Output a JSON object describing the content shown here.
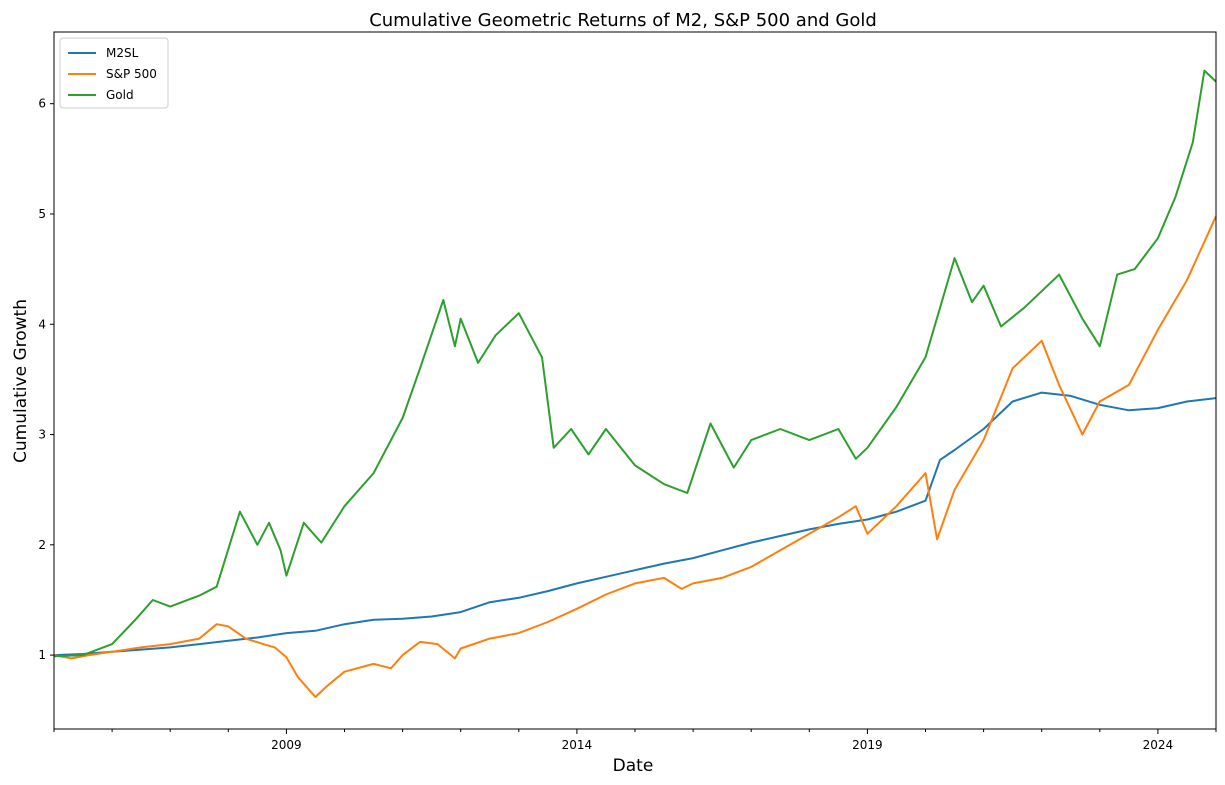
{
  "chart_data": {
    "type": "line",
    "title": "Cumulative Geometric Returns of M2, S&P 500 and Gold",
    "xlabel": "Date",
    "ylabel": "Cumulative Growth",
    "xlim": [
      2005.0,
      2025.0
    ],
    "ylim": [
      0.33,
      6.65
    ],
    "x_ticks": [
      {
        "value": 2009,
        "label": "2009"
      },
      {
        "value": 2014,
        "label": "2014"
      },
      {
        "value": 2019,
        "label": "2019"
      },
      {
        "value": 2024,
        "label": "2024"
      }
    ],
    "y_ticks": [
      {
        "value": 1,
        "label": "1"
      },
      {
        "value": 2,
        "label": "2"
      },
      {
        "value": 3,
        "label": "3"
      },
      {
        "value": 4,
        "label": "4"
      },
      {
        "value": 5,
        "label": "5"
      },
      {
        "value": 6,
        "label": "6"
      }
    ],
    "legend_position": "top-left",
    "grid": false,
    "series": [
      {
        "name": "M2SL",
        "color": "#1f77b4",
        "points": [
          [
            2005.0,
            1.0
          ],
          [
            2005.5,
            1.01
          ],
          [
            2006.0,
            1.03
          ],
          [
            2006.5,
            1.05
          ],
          [
            2007.0,
            1.07
          ],
          [
            2007.5,
            1.1
          ],
          [
            2008.0,
            1.13
          ],
          [
            2008.5,
            1.16
          ],
          [
            2009.0,
            1.2
          ],
          [
            2009.5,
            1.22
          ],
          [
            2010.0,
            1.28
          ],
          [
            2010.5,
            1.32
          ],
          [
            2011.0,
            1.33
          ],
          [
            2011.5,
            1.35
          ],
          [
            2012.0,
            1.39
          ],
          [
            2012.5,
            1.48
          ],
          [
            2013.0,
            1.52
          ],
          [
            2013.5,
            1.58
          ],
          [
            2014.0,
            1.65
          ],
          [
            2014.5,
            1.71
          ],
          [
            2015.0,
            1.77
          ],
          [
            2015.5,
            1.83
          ],
          [
            2016.0,
            1.88
          ],
          [
            2016.5,
            1.95
          ],
          [
            2017.0,
            2.02
          ],
          [
            2017.5,
            2.08
          ],
          [
            2018.0,
            2.14
          ],
          [
            2018.5,
            2.19
          ],
          [
            2019.0,
            2.23
          ],
          [
            2019.5,
            2.3
          ],
          [
            2020.0,
            2.4
          ],
          [
            2020.25,
            2.77
          ],
          [
            2020.5,
            2.86
          ],
          [
            2021.0,
            3.05
          ],
          [
            2021.5,
            3.3
          ],
          [
            2022.0,
            3.38
          ],
          [
            2022.5,
            3.35
          ],
          [
            2023.0,
            3.27
          ],
          [
            2023.5,
            3.22
          ],
          [
            2024.0,
            3.24
          ],
          [
            2024.5,
            3.3
          ],
          [
            2025.0,
            3.33
          ]
        ]
      },
      {
        "name": "S&P 500",
        "color": "#ff7f0e",
        "points": [
          [
            2005.0,
            1.0
          ],
          [
            2005.3,
            0.97
          ],
          [
            2005.6,
            1.0
          ],
          [
            2006.0,
            1.03
          ],
          [
            2006.5,
            1.07
          ],
          [
            2007.0,
            1.1
          ],
          [
            2007.5,
            1.15
          ],
          [
            2007.8,
            1.28
          ],
          [
            2008.0,
            1.26
          ],
          [
            2008.3,
            1.15
          ],
          [
            2008.6,
            1.1
          ],
          [
            2008.8,
            1.07
          ],
          [
            2009.0,
            0.98
          ],
          [
            2009.2,
            0.8
          ],
          [
            2009.5,
            0.62
          ],
          [
            2009.7,
            0.72
          ],
          [
            2010.0,
            0.85
          ],
          [
            2010.5,
            0.92
          ],
          [
            2010.8,
            0.88
          ],
          [
            2011.0,
            1.0
          ],
          [
            2011.3,
            1.12
          ],
          [
            2011.6,
            1.1
          ],
          [
            2011.9,
            0.97
          ],
          [
            2012.0,
            1.06
          ],
          [
            2012.5,
            1.15
          ],
          [
            2013.0,
            1.2
          ],
          [
            2013.5,
            1.3
          ],
          [
            2014.0,
            1.42
          ],
          [
            2014.5,
            1.55
          ],
          [
            2015.0,
            1.65
          ],
          [
            2015.5,
            1.7
          ],
          [
            2015.8,
            1.6
          ],
          [
            2016.0,
            1.65
          ],
          [
            2016.5,
            1.7
          ],
          [
            2017.0,
            1.8
          ],
          [
            2017.5,
            1.95
          ],
          [
            2018.0,
            2.1
          ],
          [
            2018.5,
            2.25
          ],
          [
            2018.8,
            2.35
          ],
          [
            2019.0,
            2.1
          ],
          [
            2019.5,
            2.35
          ],
          [
            2020.0,
            2.65
          ],
          [
            2020.2,
            2.05
          ],
          [
            2020.5,
            2.5
          ],
          [
            2021.0,
            2.95
          ],
          [
            2021.5,
            3.6
          ],
          [
            2022.0,
            3.85
          ],
          [
            2022.3,
            3.45
          ],
          [
            2022.7,
            3.0
          ],
          [
            2023.0,
            3.3
          ],
          [
            2023.5,
            3.45
          ],
          [
            2024.0,
            3.95
          ],
          [
            2024.5,
            4.4
          ],
          [
            2025.0,
            4.98
          ]
        ]
      },
      {
        "name": "Gold",
        "color": "#2ca02c",
        "points": [
          [
            2005.0,
            0.99
          ],
          [
            2005.5,
            1.0
          ],
          [
            2006.0,
            1.1
          ],
          [
            2006.4,
            1.32
          ],
          [
            2006.7,
            1.5
          ],
          [
            2007.0,
            1.44
          ],
          [
            2007.5,
            1.54
          ],
          [
            2007.8,
            1.62
          ],
          [
            2008.2,
            2.3
          ],
          [
            2008.5,
            2.0
          ],
          [
            2008.7,
            2.2
          ],
          [
            2008.9,
            1.95
          ],
          [
            2009.0,
            1.72
          ],
          [
            2009.3,
            2.2
          ],
          [
            2009.6,
            2.02
          ],
          [
            2010.0,
            2.35
          ],
          [
            2010.5,
            2.65
          ],
          [
            2011.0,
            3.15
          ],
          [
            2011.3,
            3.6
          ],
          [
            2011.7,
            4.22
          ],
          [
            2011.9,
            3.8
          ],
          [
            2012.0,
            4.05
          ],
          [
            2012.3,
            3.65
          ],
          [
            2012.6,
            3.9
          ],
          [
            2013.0,
            4.1
          ],
          [
            2013.4,
            3.7
          ],
          [
            2013.6,
            2.88
          ],
          [
            2013.9,
            3.05
          ],
          [
            2014.2,
            2.82
          ],
          [
            2014.5,
            3.05
          ],
          [
            2015.0,
            2.72
          ],
          [
            2015.5,
            2.55
          ],
          [
            2015.9,
            2.47
          ],
          [
            2016.3,
            3.1
          ],
          [
            2016.7,
            2.7
          ],
          [
            2017.0,
            2.95
          ],
          [
            2017.5,
            3.05
          ],
          [
            2018.0,
            2.95
          ],
          [
            2018.5,
            3.05
          ],
          [
            2018.8,
            2.78
          ],
          [
            2019.0,
            2.88
          ],
          [
            2019.5,
            3.25
          ],
          [
            2020.0,
            3.7
          ],
          [
            2020.5,
            4.6
          ],
          [
            2020.8,
            4.2
          ],
          [
            2021.0,
            4.35
          ],
          [
            2021.3,
            3.98
          ],
          [
            2021.7,
            4.15
          ],
          [
            2022.0,
            4.3
          ],
          [
            2022.3,
            4.45
          ],
          [
            2022.7,
            4.05
          ],
          [
            2023.0,
            3.8
          ],
          [
            2023.3,
            4.45
          ],
          [
            2023.6,
            4.5
          ],
          [
            2024.0,
            4.78
          ],
          [
            2024.3,
            5.15
          ],
          [
            2024.6,
            5.65
          ],
          [
            2024.8,
            6.3
          ],
          [
            2025.0,
            6.2
          ]
        ]
      }
    ]
  }
}
